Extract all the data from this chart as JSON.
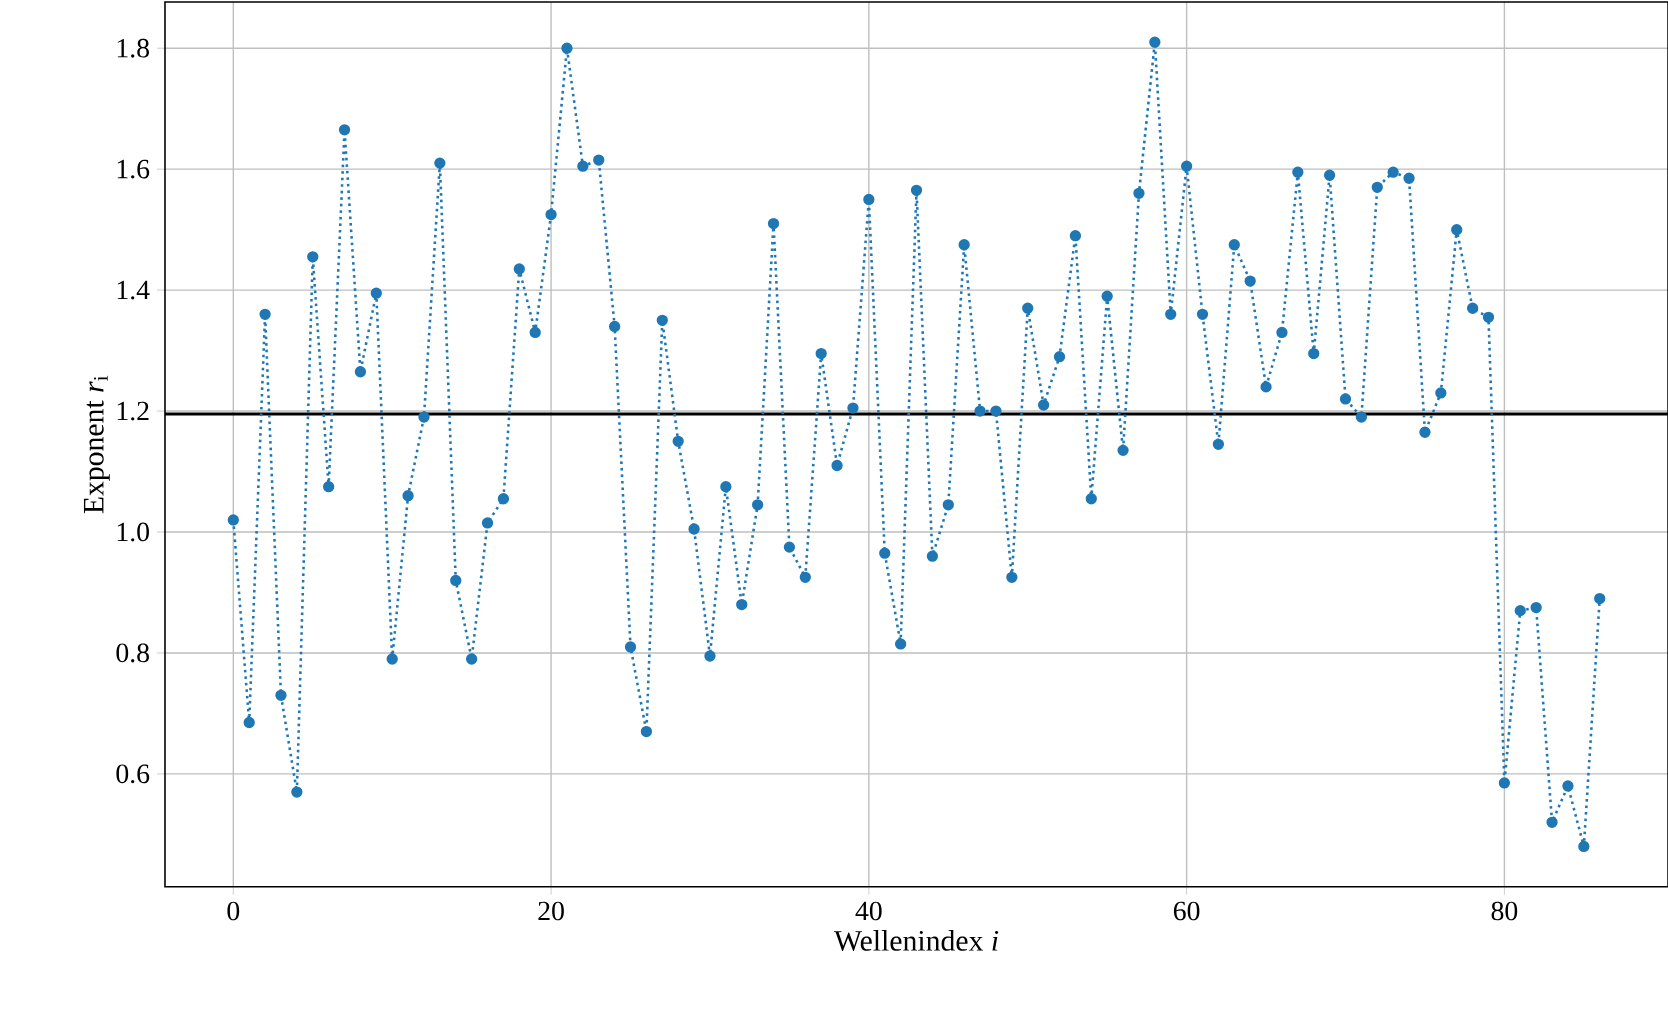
{
  "chart_data": {
    "type": "line",
    "xlabel": "Wellenindex *i*",
    "ylabel": "Exponent *r*$_{i}$",
    "x": [
      0,
      1,
      2,
      3,
      4,
      5,
      6,
      7,
      8,
      9,
      10,
      11,
      12,
      13,
      14,
      15,
      16,
      17,
      18,
      19,
      20,
      21,
      22,
      23,
      24,
      25,
      26,
      27,
      28,
      29,
      30,
      31,
      32,
      33,
      34,
      35,
      36,
      37,
      38,
      39,
      40,
      41,
      42,
      43,
      44,
      45,
      46,
      47,
      48,
      49,
      50,
      51,
      52,
      53,
      54,
      55,
      56,
      57,
      58,
      59,
      60,
      61,
      62,
      63,
      64,
      65,
      66,
      67,
      68,
      69,
      70,
      71,
      72,
      73,
      74,
      75,
      76,
      77,
      78,
      79,
      80,
      81,
      82,
      83,
      84,
      85,
      86
    ],
    "series": [
      {
        "color": "#1f77b4",
        "values": [
          1.02,
          0.685,
          1.36,
          0.73,
          0.57,
          1.455,
          1.075,
          1.665,
          1.265,
          1.395,
          0.79,
          1.06,
          1.19,
          1.61,
          0.92,
          0.79,
          1.015,
          1.055,
          1.435,
          1.33,
          1.525,
          1.8,
          1.605,
          1.615,
          1.34,
          0.81,
          0.67,
          1.35,
          1.15,
          1.005,
          0.795,
          1.075,
          0.88,
          1.045,
          1.51,
          0.975,
          0.925,
          1.295,
          1.11,
          1.205,
          1.55,
          0.965,
          0.815,
          1.565,
          0.96,
          1.045,
          1.475,
          1.2,
          1.2,
          0.925,
          1.37,
          1.21,
          1.29,
          1.49,
          1.055,
          1.39,
          1.135,
          1.56,
          1.81,
          1.36,
          1.605,
          1.36,
          1.145,
          1.475,
          1.415,
          1.24,
          1.33,
          1.595,
          1.295,
          1.59,
          1.22,
          1.19,
          1.57,
          1.595,
          1.585,
          1.165,
          1.23,
          1.5,
          1.37,
          1.355,
          0.585,
          0.87,
          0.875,
          0.52,
          0.58,
          0.48,
          0.89
        ]
      }
    ],
    "marker": "circle",
    "line_style": "dotted",
    "grid": true,
    "xlim": [
      -4.3,
      90.3
    ],
    "ylim": [
      0.4135,
      1.8765
    ],
    "xticks": [
      0,
      20,
      40,
      60,
      80
    ],
    "yticks": [
      0.6,
      0.8,
      {
        "value": 1.0,
        "label": "1.0"
      },
      1.2,
      1.4,
      1.6,
      1.8
    ],
    "ref_lines": [
      {
        "axis": "y",
        "value": 1.195,
        "color": "#000000"
      }
    ]
  }
}
